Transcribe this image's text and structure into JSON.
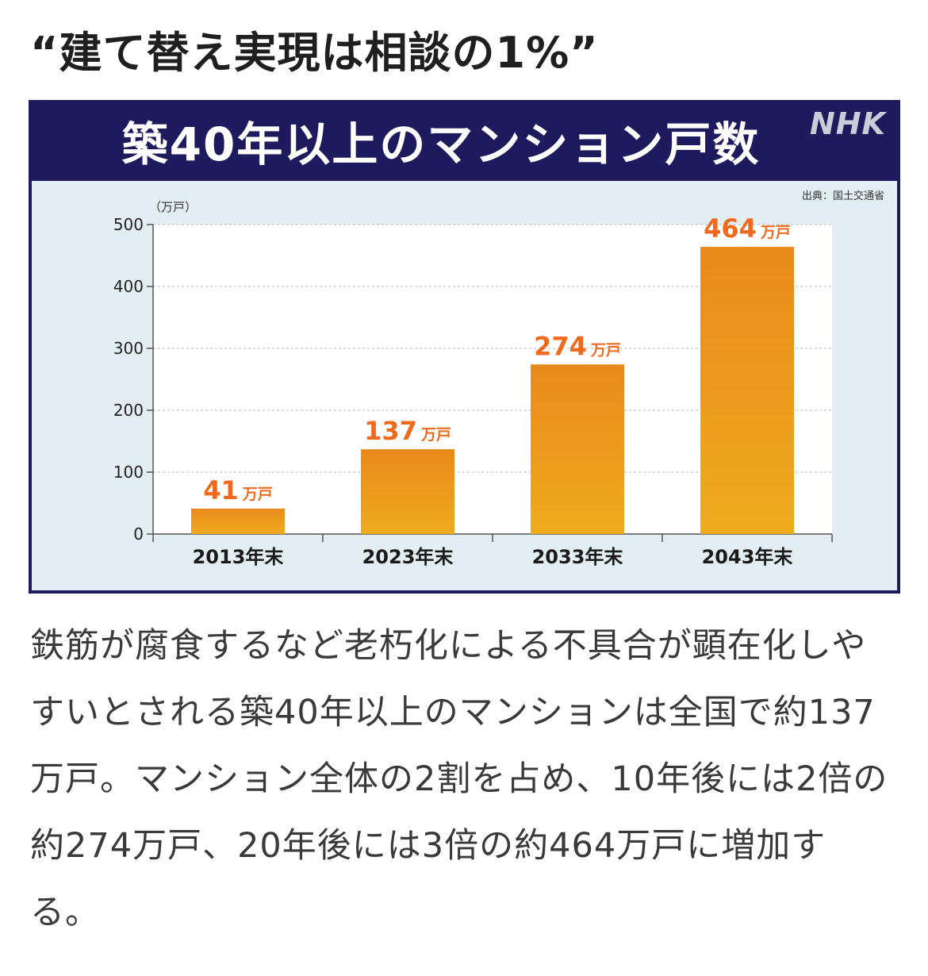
{
  "headline": "“建て替え実現は相談の1%”",
  "figure": {
    "title": "築40年以上のマンション戸数",
    "logo": "NHK",
    "source": "出典：国土交通省"
  },
  "chart_data": {
    "type": "bar",
    "categories": [
      "2013年末",
      "2023年末",
      "2033年末",
      "2043年末"
    ],
    "values": [
      41,
      137,
      274,
      464
    ],
    "data_labels": [
      "41",
      "137",
      "274",
      "464"
    ],
    "value_unit": "万戸",
    "ylabel": "（万戸）",
    "ylim": [
      0,
      500
    ],
    "yticks": [
      0,
      100,
      200,
      300,
      400,
      500
    ],
    "grid": true,
    "bar_color": "#ec9a1c",
    "label_color": "#f06a1e"
  },
  "body_text": "鉄筋が腐食するなど老朽化による不具合が顕在化しやすいとされる築40年以上のマンションは全国で約137万戸。マンション全体の2割を占め、10年後には2倍の約274万戸、20年後には3倍の約464万戸に増加する。"
}
